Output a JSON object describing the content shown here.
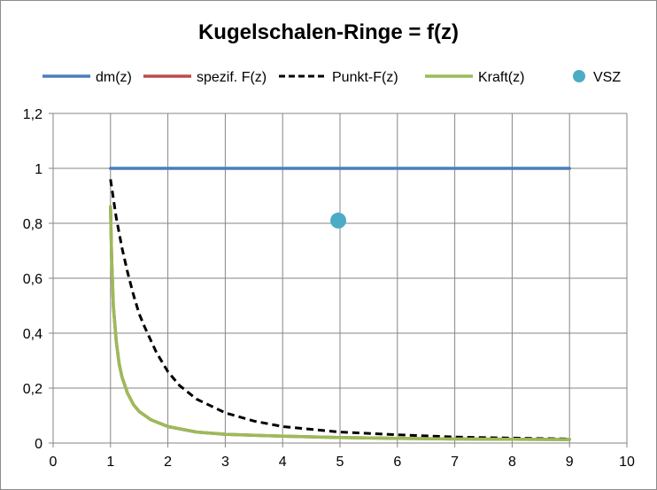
{
  "chart_data": {
    "type": "line",
    "title": "Kugelschalen-Ringe = f(z)",
    "xlabel": "",
    "ylabel": "",
    "xlim": [
      0,
      10
    ],
    "ylim": [
      0,
      1.2
    ],
    "x_ticks": [
      0,
      1,
      2,
      3,
      4,
      5,
      6,
      7,
      8,
      9,
      10
    ],
    "x_tick_labels": [
      "0",
      "1",
      "2",
      "3",
      "4",
      "5",
      "6",
      "7",
      "8",
      "9",
      "10"
    ],
    "y_ticks": [
      0,
      0.2,
      0.4,
      0.6,
      0.8,
      1.0,
      1.2
    ],
    "y_tick_labels": [
      "0",
      "0,2",
      "0,4",
      "0,6",
      "0,8",
      "1",
      "1,2"
    ],
    "grid": true,
    "legend_position": "top",
    "series": [
      {
        "name": "dm(z)",
        "style": "line",
        "color": "#4a7ebb",
        "x": [
          1,
          9
        ],
        "y": [
          1,
          1
        ]
      },
      {
        "name": "spezif. F(z)",
        "style": "line",
        "color": "#be4b48",
        "x": [
          1,
          1.02,
          1.05,
          1.1,
          1.15,
          1.2,
          1.3,
          1.4,
          1.5,
          1.7,
          2,
          2.5,
          3,
          3.5,
          4,
          5,
          6,
          7,
          8,
          9
        ],
        "y": [
          0.86,
          0.67,
          0.5,
          0.37,
          0.29,
          0.24,
          0.18,
          0.14,
          0.115,
          0.085,
          0.06,
          0.04,
          0.032,
          0.028,
          0.025,
          0.02,
          0.017,
          0.015,
          0.014,
          0.013
        ]
      },
      {
        "name": "Punkt-F(z)",
        "style": "dashed",
        "color": "#000000",
        "x": [
          1,
          1.1,
          1.2,
          1.3,
          1.4,
          1.5,
          1.6,
          1.8,
          2,
          2.2,
          2.5,
          3,
          3.5,
          4,
          4.5,
          5,
          6,
          7,
          8,
          9
        ],
        "y": [
          0.96,
          0.82,
          0.71,
          0.62,
          0.54,
          0.47,
          0.42,
          0.33,
          0.26,
          0.21,
          0.16,
          0.11,
          0.08,
          0.06,
          0.05,
          0.04,
          0.03,
          0.022,
          0.018,
          0.015
        ]
      },
      {
        "name": "Kraft(z)",
        "style": "line",
        "color": "#9bbb59",
        "x": [
          1,
          1.02,
          1.05,
          1.1,
          1.15,
          1.2,
          1.3,
          1.4,
          1.5,
          1.7,
          2,
          2.5,
          3,
          3.5,
          4,
          5,
          6,
          7,
          8,
          9
        ],
        "y": [
          0.86,
          0.67,
          0.5,
          0.37,
          0.29,
          0.24,
          0.18,
          0.14,
          0.115,
          0.085,
          0.06,
          0.04,
          0.032,
          0.028,
          0.025,
          0.02,
          0.017,
          0.015,
          0.014,
          0.013
        ]
      },
      {
        "name": "VSZ",
        "style": "marker",
        "color": "#4bacc6",
        "x": [
          4.97
        ],
        "y": [
          0.81
        ]
      }
    ]
  }
}
